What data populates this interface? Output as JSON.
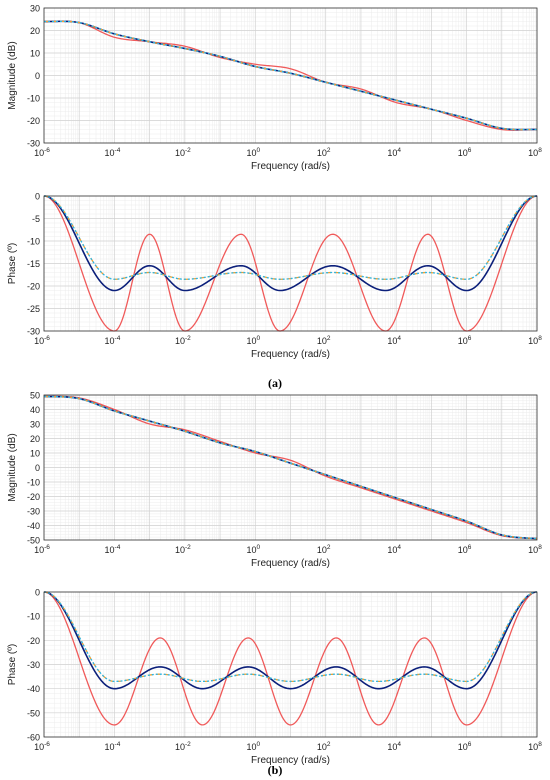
{
  "panel_labels": {
    "a": "(a)",
    "b": "(b)"
  },
  "series_colors": [
    "#f05a5a",
    "#0b1f7a",
    "#f0a030",
    "#2ab6e6"
  ],
  "x_tick_labels": [
    "10",
    "10",
    "10",
    "10",
    "10",
    "10",
    "10",
    "10"
  ],
  "x_tick_exponents": [
    "-6",
    "-4",
    "-2",
    "0",
    "2",
    "4",
    "6",
    "8"
  ],
  "chart_data": [
    {
      "type": "line",
      "panel": "a-magnitude",
      "xlabel": "Frequency (rad/s)",
      "ylabel": "Magnitude (dB)",
      "xscale": "log",
      "xlim": [
        1e-06,
        100000000.0
      ],
      "ylim": [
        -30,
        30
      ],
      "yticks": [
        "30",
        "20",
        "10",
        "0",
        "-10",
        "-20",
        "-30"
      ],
      "grid": true,
      "x": [
        1e-06,
        1e-05,
        0.0001,
        0.001,
        0.01,
        0.1,
        1,
        10.0,
        100.0,
        1000.0,
        10000.0,
        100000.0,
        1000000.0,
        10000000.0,
        100000000.0
      ],
      "series": [
        {
          "values": [
            24,
            23.5,
            17,
            15,
            13,
            8,
            5,
            3,
            -3,
            -6,
            -12,
            -15,
            -20,
            -24,
            -24
          ]
        },
        {
          "values": [
            24,
            23.5,
            18.5,
            15,
            12,
            8.5,
            4,
            1,
            -3,
            -7,
            -11,
            -15,
            -19,
            -23.5,
            -24
          ]
        },
        {
          "values": [
            24,
            23.5,
            18.5,
            15,
            12,
            8.5,
            4,
            1,
            -3,
            -7,
            -11,
            -15,
            -19,
            -23.5,
            -24
          ]
        },
        {
          "values": [
            24,
            23.5,
            18.5,
            15,
            12,
            8.5,
            4,
            1,
            -3,
            -7,
            -11,
            -15,
            -19,
            -23.5,
            -24
          ]
        }
      ]
    },
    {
      "type": "line",
      "panel": "a-phase",
      "xlabel": "Frequency (rad/s)",
      "ylabel": "Phase (º)",
      "xscale": "log",
      "xlim": [
        1e-06,
        100000000.0
      ],
      "ylim": [
        -30,
        0
      ],
      "yticks": [
        "0",
        "-5",
        "-10",
        "-15",
        "-20",
        "-25",
        "-30"
      ],
      "grid": true,
      "phase_model": {
        "minima_log_x": [
          -4,
          -2,
          0.7,
          3.7,
          6
        ],
        "maxima_log_x": [
          -3,
          -0.4,
          2.2,
          4.9
        ],
        "series_ranges": [
          [
            -30,
            -8.5
          ],
          [
            -21,
            -15.5
          ],
          [
            -18.5,
            -17
          ],
          [
            -18.5,
            -17
          ]
        ]
      },
      "series": [
        {
          "values": [
            -1,
            -30,
            -8.5,
            -30,
            -8.5,
            -30,
            -8.5,
            -30,
            -1
          ]
        },
        {
          "values": [
            -1,
            -21,
            -15.5,
            -21,
            -15.5,
            -21,
            -15.5,
            -21,
            -1
          ]
        },
        {
          "values": [
            -1,
            -18.5,
            -17,
            -18.5,
            -17,
            -18.5,
            -17,
            -18.5,
            -1
          ]
        },
        {
          "values": [
            -1,
            -18.5,
            -17,
            -18.5,
            -17,
            -18.5,
            -17,
            -18.5,
            -1
          ]
        }
      ]
    },
    {
      "type": "line",
      "panel": "b-magnitude",
      "xlabel": "Frequency (rad/s)",
      "ylabel": "Magnitude (dB)",
      "xscale": "log",
      "xlim": [
        1e-06,
        100000000.0
      ],
      "ylim": [
        -50,
        50
      ],
      "yticks": [
        "50",
        "40",
        "30",
        "20",
        "10",
        "0",
        "-10",
        "-20",
        "-30",
        "-40",
        "-50"
      ],
      "grid": true,
      "x": [
        1e-06,
        1e-05,
        0.0001,
        0.001,
        0.01,
        0.1,
        1,
        10.0,
        100.0,
        1000.0,
        10000.0,
        100000.0,
        1000000.0,
        10000000.0,
        100000000.0
      ],
      "series": [
        {
          "values": [
            49,
            48,
            40,
            30,
            26,
            18,
            10,
            5,
            -6,
            -14,
            -22,
            -30,
            -38,
            -47,
            -49
          ]
        },
        {
          "values": [
            49,
            47.5,
            39,
            32,
            25,
            17,
            11,
            3,
            -5,
            -13,
            -21,
            -29,
            -37,
            -46.5,
            -49
          ]
        },
        {
          "values": [
            49,
            47.5,
            39,
            32,
            25,
            17,
            11,
            3,
            -5,
            -13,
            -21,
            -29,
            -37,
            -46.5,
            -49
          ]
        },
        {
          "values": [
            49,
            47.5,
            39,
            32,
            25,
            17,
            11,
            3,
            -5,
            -13,
            -21,
            -29,
            -37,
            -46.5,
            -49
          ]
        }
      ]
    },
    {
      "type": "line",
      "panel": "b-phase",
      "xlabel": "Frequency (rad/s)",
      "ylabel": "Phase (º)",
      "xscale": "log",
      "xlim": [
        1e-06,
        100000000.0
      ],
      "ylim": [
        -60,
        0
      ],
      "yticks": [
        "0",
        "-10",
        "-20",
        "-30",
        "-40",
        "-50",
        "-60"
      ],
      "grid": true,
      "phase_model": {
        "minima_log_x": [
          -4,
          -1.5,
          1,
          3.5,
          6
        ],
        "maxima_log_x": [
          -2.7,
          -0.2,
          2.3,
          4.8
        ],
        "series_ranges": [
          [
            -55,
            -19
          ],
          [
            -40,
            -31
          ],
          [
            -37,
            -34
          ],
          [
            -37,
            -34
          ]
        ]
      },
      "series": [
        {
          "values": [
            -2,
            -55,
            -19,
            -55,
            -19,
            -55,
            -19,
            -55,
            -2
          ]
        },
        {
          "values": [
            -2,
            -40,
            -31,
            -40,
            -31,
            -40,
            -31,
            -40,
            -2
          ]
        },
        {
          "values": [
            -2,
            -37,
            -34,
            -37,
            -34,
            -37,
            -34,
            -37,
            -2
          ]
        },
        {
          "values": [
            -2,
            -37,
            -34,
            -37,
            -34,
            -37,
            -34,
            -37,
            -2
          ]
        }
      ]
    }
  ]
}
